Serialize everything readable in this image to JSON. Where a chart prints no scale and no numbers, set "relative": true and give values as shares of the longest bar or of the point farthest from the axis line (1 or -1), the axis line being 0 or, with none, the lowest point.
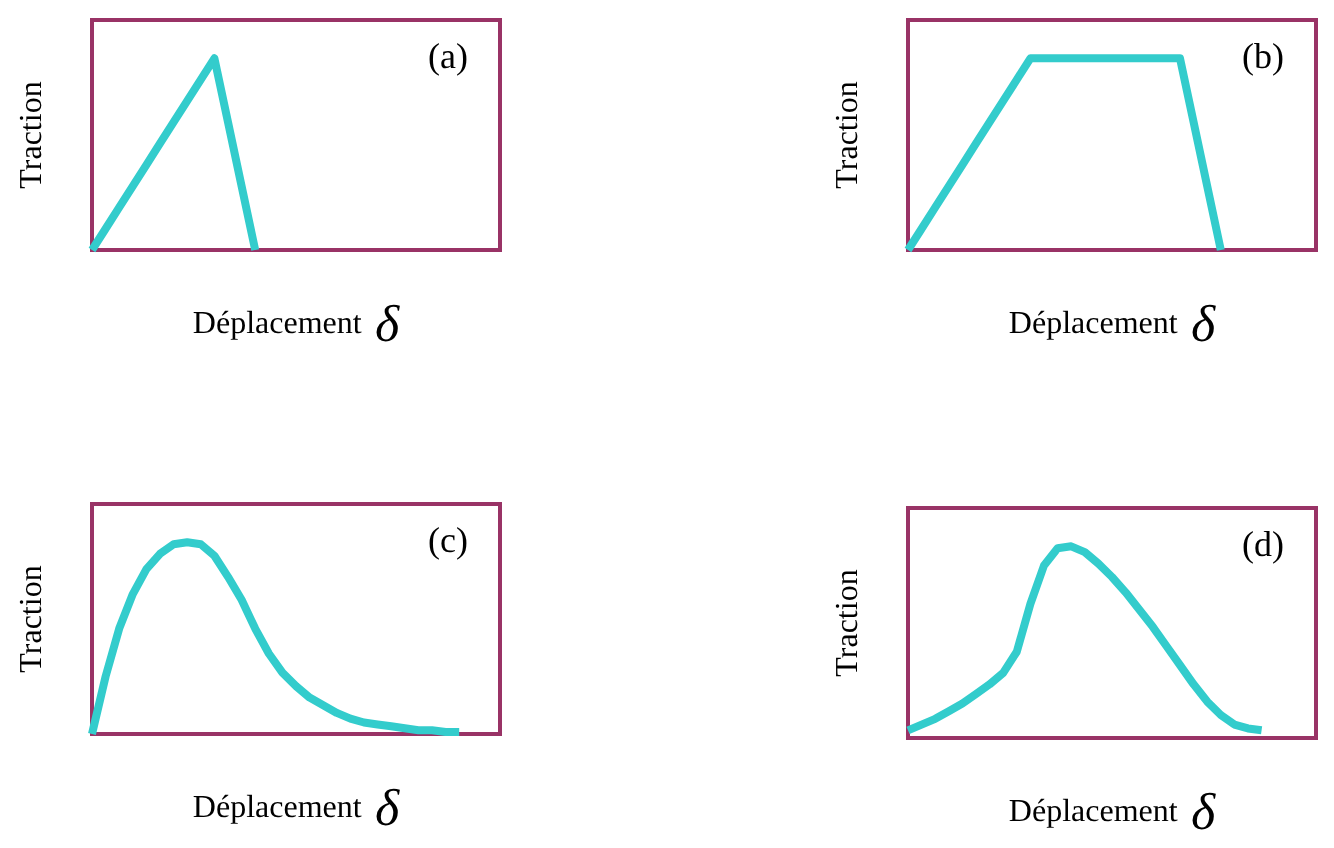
{
  "chart_data": [
    {
      "type": "line",
      "title": "(a)",
      "xlabel": "Déplacement δ",
      "ylabel": "Traction",
      "relative": true,
      "categories": [
        null,
        null,
        null,
        null,
        null,
        null,
        null,
        null,
        null,
        null,
        null,
        null,
        null,
        null,
        null,
        null,
        null,
        null,
        null,
        null,
        null,
        null,
        null,
        null,
        null,
        null,
        null,
        null,
        null,
        null,
        null
      ],
      "series": [
        {
          "color": "#33cccc",
          "values": [
            0,
            0.111,
            0.222,
            0.333,
            0.444,
            0.556,
            0.667,
            0.778,
            0.889,
            1,
            0.667,
            0.333,
            0,
            null,
            null,
            null,
            null,
            null,
            null,
            null,
            null,
            null,
            null,
            null,
            null,
            null,
            null,
            null,
            null,
            null,
            null
          ]
        }
      ]
    },
    {
      "type": "line",
      "title": "(b)",
      "xlabel": "Déplacement δ",
      "ylabel": "Traction",
      "relative": true,
      "categories": [
        null,
        null,
        null,
        null,
        null,
        null,
        null,
        null,
        null,
        null,
        null,
        null,
        null,
        null,
        null,
        null,
        null,
        null,
        null,
        null,
        null,
        null,
        null,
        null,
        null,
        null,
        null,
        null,
        null,
        null,
        null
      ],
      "series": [
        {
          "color": "#33cccc",
          "values": [
            0,
            0.111,
            0.222,
            0.333,
            0.444,
            0.556,
            0.667,
            0.778,
            0.889,
            1,
            1,
            1,
            1,
            1,
            1,
            1,
            1,
            1,
            1,
            1,
            1,
            0.667,
            0.333,
            0,
            null,
            null,
            null,
            null,
            null,
            null,
            null
          ]
        }
      ]
    },
    {
      "type": "line",
      "title": "(c)",
      "xlabel": "Déplacement δ",
      "ylabel": "Traction",
      "relative": true,
      "categories": [
        null,
        null,
        null,
        null,
        null,
        null,
        null,
        null,
        null,
        null,
        null,
        null,
        null,
        null,
        null,
        null,
        null,
        null,
        null,
        null,
        null,
        null,
        null,
        null,
        null,
        null,
        null,
        null,
        null,
        null,
        null
      ],
      "series": [
        {
          "color": "#33cccc",
          "values": [
            0,
            0.3,
            0.55,
            0.73,
            0.86,
            0.94,
            0.99,
            1,
            0.99,
            0.93,
            0.82,
            0.7,
            0.55,
            0.42,
            0.32,
            0.25,
            0.19,
            0.15,
            0.11,
            0.08,
            0.06,
            0.05,
            0.04,
            0.03,
            0.02,
            0.02,
            0.01,
            0.01,
            null,
            null,
            null
          ]
        }
      ]
    },
    {
      "type": "line",
      "title": "(d)",
      "xlabel": "Déplacement δ",
      "ylabel": "Traction",
      "relative": true,
      "categories": [
        null,
        null,
        null,
        null,
        null,
        null,
        null,
        null,
        null,
        null,
        null,
        null,
        null,
        null,
        null,
        null,
        null,
        null,
        null,
        null,
        null,
        null,
        null,
        null,
        null,
        null,
        null,
        null,
        null,
        null,
        null
      ],
      "series": [
        {
          "color": "#33cccc",
          "values": [
            0.04,
            0.07,
            0.1,
            0.14,
            0.18,
            0.23,
            0.28,
            0.34,
            0.45,
            0.7,
            0.9,
            0.99,
            1,
            0.97,
            0.91,
            0.84,
            0.76,
            0.67,
            0.58,
            0.48,
            0.38,
            0.28,
            0.19,
            0.12,
            0.07,
            0.05,
            0.04,
            null,
            null,
            null,
            null
          ]
        }
      ]
    }
  ]
}
